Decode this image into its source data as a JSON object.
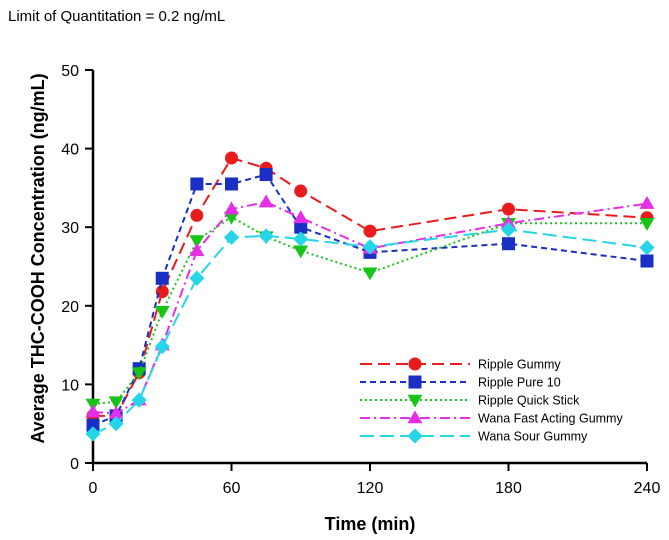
{
  "note": "Limit of Quantitation = 0.2 ng/mL",
  "chart_data": {
    "type": "line",
    "title": "",
    "xlabel": "Time (min)",
    "ylabel": "Average THC-COOH Concentration (ng/mL)",
    "xlim": [
      0,
      240
    ],
    "ylim": [
      0,
      50
    ],
    "xticks": [
      0,
      60,
      120,
      180,
      240
    ],
    "yticks": [
      0,
      10,
      20,
      30,
      40,
      50
    ],
    "grid": false,
    "legend_position": "bottom-right",
    "series": [
      {
        "name": "Ripple Gummy",
        "color": "#e81c1c",
        "marker": "circle",
        "dash": "12,6",
        "x": [
          0,
          10,
          20,
          30,
          45,
          60,
          75,
          90,
          120,
          180,
          240
        ],
        "y": [
          6.0,
          6.0,
          11.5,
          21.8,
          31.5,
          38.8,
          37.5,
          34.6,
          29.5,
          32.3,
          31.2
        ]
      },
      {
        "name": "Ripple Pure 10",
        "color": "#1a2fc4",
        "marker": "square",
        "dash": "6,4",
        "x": [
          0,
          10,
          20,
          30,
          45,
          60,
          75,
          90,
          120,
          180,
          240
        ],
        "y": [
          4.8,
          6.0,
          12.0,
          23.5,
          35.5,
          35.5,
          36.7,
          30.0,
          26.8,
          27.9,
          25.7
        ]
      },
      {
        "name": "Ripple Quick Stick",
        "color": "#19c419",
        "marker": "triangle-down",
        "dash": "2,3",
        "x": [
          0,
          10,
          20,
          30,
          45,
          60,
          75,
          90,
          120,
          180,
          240
        ],
        "y": [
          7.5,
          7.8,
          11.5,
          19.3,
          28.3,
          31.3,
          28.8,
          27.0,
          24.2,
          30.5,
          30.5
        ]
      },
      {
        "name": "Wana Fast Acting Gummy",
        "color": "#e62ee6",
        "marker": "triangle-up",
        "dash": "10,4,2,4",
        "x": [
          0,
          10,
          20,
          30,
          45,
          60,
          75,
          90,
          120,
          180,
          240
        ],
        "y": [
          6.5,
          6.3,
          8.0,
          15.0,
          27.0,
          32.3,
          33.2,
          31.2,
          27.3,
          30.5,
          33.0
        ]
      },
      {
        "name": "Wana Sour Gummy",
        "color": "#26d6e8",
        "marker": "diamond",
        "dash": "14,6",
        "x": [
          0,
          10,
          20,
          30,
          45,
          60,
          75,
          90,
          120,
          180,
          240
        ],
        "y": [
          3.7,
          5.0,
          8.0,
          14.8,
          23.5,
          28.7,
          28.9,
          28.5,
          27.5,
          29.7,
          27.4
        ]
      }
    ]
  }
}
